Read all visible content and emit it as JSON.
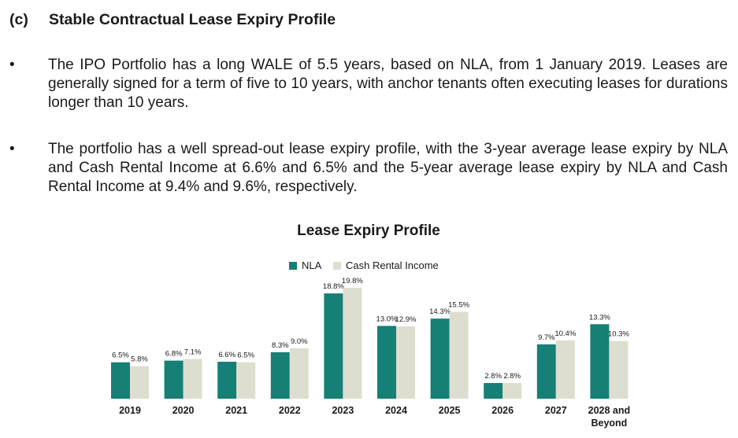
{
  "section": {
    "number": "(c)",
    "title": "Stable Contractual Lease Expiry Profile"
  },
  "bullets": [
    {
      "symbol": "•",
      "text": "The IPO Portfolio has a long WALE of 5.5 years, based on NLA, from 1 January 2019. Leases are generally signed for a term of five to 10 years, with anchor tenants often executing leases for durations longer than 10 years."
    },
    {
      "symbol": "•",
      "text": "The portfolio has a well spread-out lease expiry profile, with the 3-year average lease expiry by NLA and Cash Rental Income at 6.6% and 6.5% and the 5-year average lease expiry by NLA and Cash Rental Income at 9.4% and 9.6%, respectively."
    }
  ],
  "chart_data": {
    "type": "bar",
    "title": "Lease Expiry Profile",
    "categories": [
      "2019",
      "2020",
      "2021",
      "2022",
      "2023",
      "2024",
      "2025",
      "2026",
      "2027",
      "2028 and Beyond"
    ],
    "series": [
      {
        "name": "NLA",
        "color": "#167f76",
        "values": [
          6.5,
          6.8,
          6.6,
          8.3,
          18.8,
          13.0,
          14.3,
          2.8,
          9.7,
          13.3
        ],
        "labels": [
          "6.5%",
          "6.8%",
          "6.6%",
          "8.3%",
          "18.8%",
          "13.0%",
          "14.3%",
          "2.8%",
          "9.7%",
          "13.3%"
        ]
      },
      {
        "name": "Cash Rental Income",
        "color": "#deded0",
        "values": [
          5.8,
          7.1,
          6.5,
          9.0,
          19.8,
          12.9,
          15.5,
          2.8,
          10.4,
          10.3
        ],
        "labels": [
          "5.8%",
          "7.1%",
          "6.5%",
          "9.0%",
          "19.8%",
          "12.9%",
          "15.5%",
          "2.8%",
          "10.4%",
          "10.3%"
        ]
      }
    ],
    "legend_position": "top-center",
    "ylim": [
      0,
      20
    ],
    "grid": false,
    "y_axis_shown": false
  }
}
